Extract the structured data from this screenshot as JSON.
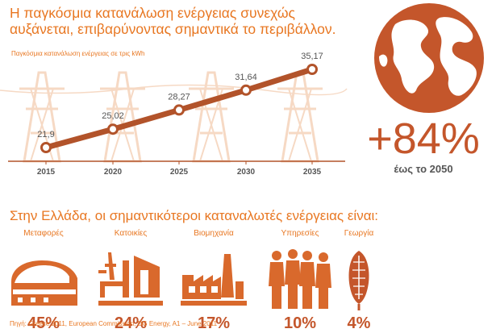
{
  "headline": "Η παγκόσμια κατανάλωση ενέργειας συνεχώς αυξάνεται, επιβαρύνοντας σημαντικά το περιβάλλον.",
  "chart_data": {
    "type": "line",
    "ylabel": "Παγκόσμια κατανάλωση ενέργειας σε τρις kWh",
    "x": [
      "2015",
      "2020",
      "2025",
      "2030",
      "2035"
    ],
    "values": [
      21.9,
      25.02,
      28.27,
      31.64,
      35.17
    ],
    "labels": [
      "21,9",
      "25,02",
      "28,27",
      "31,64",
      "35,17"
    ],
    "grid": false,
    "colors": {
      "line": "#b2532a",
      "point_fill": "#ffffff",
      "background_towers": "#f6d9c4"
    }
  },
  "growth": {
    "value": "+84%",
    "subtitle": "έως το 2050"
  },
  "section_title": "Στην Ελλάδα, οι σημαντικότεροι καταναλωτές ενέργειας είναι:",
  "sectors": [
    {
      "name": "Μεταφορές",
      "pct": "45%",
      "icon": "train-icon"
    },
    {
      "name": "Κατοικίες",
      "pct": "24%",
      "icon": "house-icon"
    },
    {
      "name": "Βιομηχανία",
      "pct": "17%",
      "icon": "factory-icon"
    },
    {
      "name": "Υπηρεσίες",
      "pct": "10%",
      "icon": "people-icon"
    },
    {
      "name": "Γεωργία",
      "pct": "4%",
      "icon": "corn-icon"
    }
  ],
  "source": "Πηγή: Greece 2011, European Commission, DG Energy, A1 – June 2011"
}
